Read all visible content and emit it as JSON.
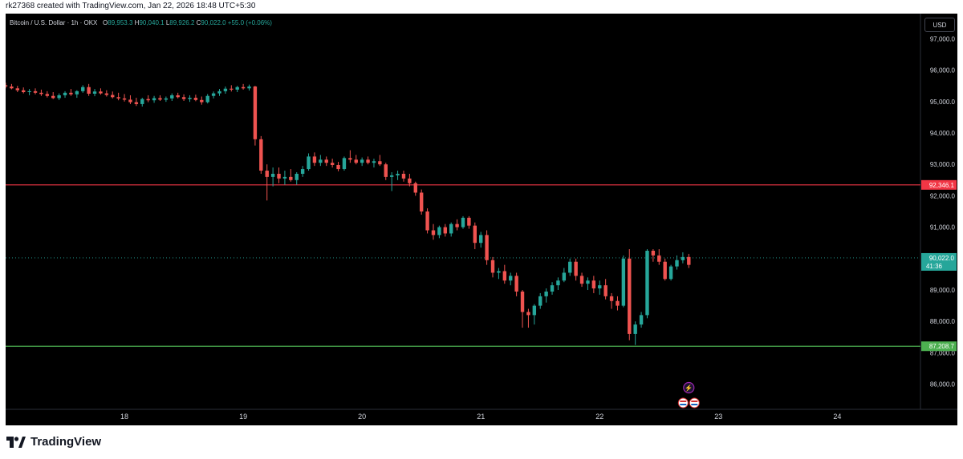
{
  "caption": "rk27368 created with TradingView.com, Jan 22, 2026 18:48 UTC+5:30",
  "legend": {
    "symbol": "Bitcoin / U.S. Dollar · 1h · OKX",
    "open_label": "O",
    "open_value": "89,953.3",
    "high_label": "H",
    "high_value": "90,040.1",
    "low_label": "L",
    "low_value": "89,926.2",
    "close_label": "C",
    "close_value": "90,022.0",
    "change": "+55.0 (+0.06%)"
  },
  "currency": "USD",
  "brand": "TradingView",
  "colors": {
    "up": "#26a69a",
    "down": "#ef5350",
    "resistance": "#f23645",
    "support": "#4caf50",
    "grid_text": "#d1d4dc"
  },
  "chart_data": {
    "type": "candlestick",
    "interval": "1h",
    "ylim": [
      85200,
      97800
    ],
    "y_ticks": [
      "97,000.0",
      "96,000.0",
      "95,000.0",
      "94,000.0",
      "93,000.0",
      "92,000.0",
      "91,000.0",
      "90,000.0",
      "89,000.0",
      "88,000.0",
      "87,000.0",
      "86,000.0"
    ],
    "y_tick_values": [
      97000,
      96000,
      95000,
      94000,
      93000,
      92000,
      91000,
      90000,
      89000,
      88000,
      87000,
      86000
    ],
    "x_ticks": [
      "18",
      "19",
      "20",
      "21",
      "22",
      "23",
      "24"
    ],
    "x_tick_days": [
      18,
      19,
      20,
      21,
      22,
      23,
      24
    ],
    "x_range_days": [
      17.0,
      24.7
    ],
    "levels": [
      {
        "label": "92,346.1",
        "value": 92346.1,
        "color": "#f23645"
      },
      {
        "label": "87,208.7",
        "value": 87208.7,
        "color": "#4caf50"
      }
    ],
    "last_price": {
      "label": "90,022.0",
      "countdown": "41:36",
      "value": 90022.0
    },
    "candles": [
      [
        17.0,
        95520,
        95600,
        95420,
        95480
      ],
      [
        17.05,
        95480,
        95560,
        95390,
        95420
      ],
      [
        17.1,
        95420,
        95500,
        95300,
        95360
      ],
      [
        17.15,
        95360,
        95450,
        95260,
        95300
      ],
      [
        17.2,
        95300,
        95400,
        95200,
        95330
      ],
      [
        17.25,
        95330,
        95420,
        95230,
        95280
      ],
      [
        17.3,
        95280,
        95380,
        95180,
        95240
      ],
      [
        17.35,
        95240,
        95330,
        95130,
        95180
      ],
      [
        17.4,
        95180,
        95300,
        95080,
        95110
      ],
      [
        17.45,
        95110,
        95260,
        95050,
        95200
      ],
      [
        17.5,
        95200,
        95330,
        95120,
        95280
      ],
      [
        17.55,
        95280,
        95400,
        95180,
        95230
      ],
      [
        17.6,
        95230,
        95360,
        95120,
        95330
      ],
      [
        17.65,
        95330,
        95520,
        95280,
        95460
      ],
      [
        17.7,
        95460,
        95560,
        95180,
        95250
      ],
      [
        17.75,
        95250,
        95400,
        95170,
        95320
      ],
      [
        17.8,
        95320,
        95420,
        95220,
        95260
      ],
      [
        17.85,
        95260,
        95360,
        95160,
        95210
      ],
      [
        17.9,
        95210,
        95320,
        95100,
        95140
      ],
      [
        17.95,
        95140,
        95280,
        95040,
        95100
      ],
      [
        18.0,
        95100,
        95240,
        95000,
        95060
      ],
      [
        18.05,
        95060,
        95200,
        94920,
        94980
      ],
      [
        18.1,
        94980,
        95120,
        94860,
        94920
      ],
      [
        18.15,
        94920,
        95120,
        94840,
        95080
      ],
      [
        18.2,
        95080,
        95200,
        94980,
        95040
      ],
      [
        18.25,
        95040,
        95180,
        94960,
        95110
      ],
      [
        18.3,
        95110,
        95200,
        95020,
        95060
      ],
      [
        18.35,
        95060,
        95160,
        94990,
        95100
      ],
      [
        18.4,
        95100,
        95260,
        95020,
        95200
      ],
      [
        18.45,
        95200,
        95280,
        95100,
        95140
      ],
      [
        18.5,
        95140,
        95230,
        95020,
        95080
      ],
      [
        18.55,
        95080,
        95200,
        94990,
        95120
      ],
      [
        18.6,
        95120,
        95220,
        95010,
        95050
      ],
      [
        18.65,
        95050,
        95160,
        94900,
        94980
      ],
      [
        18.7,
        94980,
        95240,
        94940,
        95180
      ],
      [
        18.75,
        95180,
        95320,
        95100,
        95260
      ],
      [
        18.8,
        95260,
        95400,
        95180,
        95330
      ],
      [
        18.85,
        95330,
        95480,
        95250,
        95410
      ],
      [
        18.9,
        95410,
        95520,
        95320,
        95380
      ],
      [
        18.95,
        95380,
        95500,
        95300,
        95460
      ],
      [
        19.0,
        95460,
        95560,
        95380,
        95420
      ],
      [
        19.05,
        95420,
        95540,
        95350,
        95480
      ],
      [
        19.1,
        95480,
        95500,
        93600,
        93800
      ],
      [
        19.15,
        93800,
        93900,
        92700,
        92800
      ],
      [
        19.2,
        92800,
        93000,
        91850,
        92600
      ],
      [
        19.25,
        92600,
        92900,
        92300,
        92700
      ],
      [
        19.3,
        92700,
        92900,
        92400,
        92550
      ],
      [
        19.35,
        92550,
        92800,
        92350,
        92600
      ],
      [
        19.4,
        92600,
        92850,
        92450,
        92500
      ],
      [
        19.45,
        92500,
        92750,
        92350,
        92700
      ],
      [
        19.5,
        92700,
        92950,
        92600,
        92850
      ],
      [
        19.55,
        92850,
        93350,
        92800,
        93250
      ],
      [
        19.6,
        93250,
        93380,
        92950,
        93050
      ],
      [
        19.65,
        93050,
        93300,
        92950,
        93150
      ],
      [
        19.7,
        93150,
        93250,
        92950,
        93050
      ],
      [
        19.75,
        93050,
        93180,
        92900,
        92980
      ],
      [
        19.8,
        92980,
        93080,
        92780,
        92850
      ],
      [
        19.85,
        92850,
        93250,
        92800,
        93200
      ],
      [
        19.9,
        93200,
        93450,
        93050,
        93150
      ],
      [
        19.95,
        93150,
        93300,
        93000,
        93050
      ],
      [
        20.0,
        93050,
        93220,
        92950,
        93150
      ],
      [
        20.05,
        93150,
        93250,
        93000,
        93050
      ],
      [
        20.1,
        93050,
        93180,
        92900,
        93100
      ],
      [
        20.15,
        93100,
        93300,
        92950,
        93000
      ],
      [
        20.2,
        93000,
        93050,
        92500,
        92600
      ],
      [
        20.25,
        92600,
        92750,
        92150,
        92650
      ],
      [
        20.3,
        92650,
        92800,
        92500,
        92700
      ],
      [
        20.35,
        92700,
        92800,
        92450,
        92550
      ],
      [
        20.4,
        92550,
        92700,
        92300,
        92400
      ],
      [
        20.45,
        92400,
        92450,
        92000,
        92100
      ],
      [
        20.5,
        92100,
        92200,
        91400,
        91500
      ],
      [
        20.55,
        91500,
        91600,
        90800,
        90900
      ],
      [
        20.6,
        90900,
        91100,
        90600,
        90750
      ],
      [
        20.65,
        90750,
        91050,
        90650,
        91000
      ],
      [
        20.7,
        91000,
        91100,
        90700,
        90800
      ],
      [
        20.75,
        90800,
        91150,
        90700,
        91100
      ],
      [
        20.8,
        91100,
        91250,
        90900,
        91000
      ],
      [
        20.85,
        91000,
        91350,
        90950,
        91300
      ],
      [
        20.9,
        91300,
        91350,
        90950,
        91050
      ],
      [
        20.95,
        91050,
        91150,
        90300,
        90500
      ],
      [
        21.0,
        90500,
        90850,
        90350,
        90750
      ],
      [
        21.05,
        90750,
        90900,
        89800,
        89950
      ],
      [
        21.1,
        89950,
        90050,
        89400,
        89550
      ],
      [
        21.15,
        89550,
        89700,
        89350,
        89600
      ],
      [
        21.2,
        89600,
        89800,
        89200,
        89300
      ],
      [
        21.25,
        89300,
        89550,
        89150,
        89450
      ],
      [
        21.3,
        89450,
        89550,
        88800,
        88950
      ],
      [
        21.35,
        88950,
        89000,
        87800,
        88300
      ],
      [
        21.4,
        88300,
        88400,
        87800,
        88200
      ],
      [
        21.45,
        88200,
        88550,
        87900,
        88500
      ],
      [
        21.5,
        88500,
        88900,
        88400,
        88800
      ],
      [
        21.55,
        88800,
        89050,
        88600,
        88950
      ],
      [
        21.6,
        88950,
        89250,
        88850,
        89150
      ],
      [
        21.65,
        89150,
        89400,
        89000,
        89300
      ],
      [
        21.7,
        89300,
        89700,
        89250,
        89550
      ],
      [
        21.75,
        89550,
        90000,
        89450,
        89900
      ],
      [
        21.8,
        89900,
        90000,
        89300,
        89450
      ],
      [
        21.85,
        89450,
        89550,
        89100,
        89200
      ],
      [
        21.9,
        89200,
        89400,
        89000,
        89300
      ],
      [
        21.95,
        89300,
        89450,
        88900,
        89050
      ],
      [
        22.0,
        89050,
        89300,
        88850,
        89150
      ],
      [
        22.05,
        89150,
        89350,
        88700,
        88800
      ],
      [
        22.1,
        88800,
        88900,
        88400,
        88650
      ],
      [
        22.15,
        88650,
        88800,
        88350,
        88500
      ],
      [
        22.2,
        88500,
        90100,
        88450,
        90000
      ],
      [
        22.25,
        90000,
        90300,
        87400,
        87600
      ],
      [
        22.3,
        87600,
        88000,
        87250,
        87900
      ],
      [
        22.35,
        87900,
        88300,
        87800,
        88200
      ],
      [
        22.4,
        88200,
        90300,
        88100,
        90250
      ],
      [
        22.45,
        90250,
        90300,
        89900,
        90100
      ],
      [
        22.5,
        90100,
        90300,
        89800,
        89900
      ],
      [
        22.55,
        89900,
        90000,
        89300,
        89350
      ],
      [
        22.6,
        89350,
        89800,
        89300,
        89750
      ],
      [
        22.65,
        89750,
        90100,
        89650,
        89950
      ],
      [
        22.7,
        89950,
        90200,
        89850,
        90050
      ],
      [
        22.75,
        90050,
        90150,
        89700,
        89800
      ]
    ],
    "events": [
      "lightning-event",
      "us-flag-event",
      "us-flag-event"
    ]
  }
}
